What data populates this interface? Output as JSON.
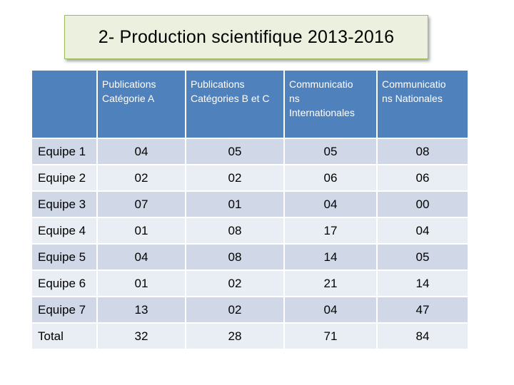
{
  "title": "2- Production scientifique 2013-2016",
  "table": {
    "headers": [
      "",
      "Publications\nCatégorie A",
      "Publications\nCatégories B et C",
      "Communicatio\nns\nInternationales",
      "Communicatio\nns Nationales"
    ],
    "rows": [
      [
        "Equipe 1",
        "04",
        "05",
        "05",
        "08"
      ],
      [
        "Equipe 2",
        "02",
        "02",
        "06",
        "06"
      ],
      [
        "Equipe 3",
        "07",
        "01",
        "04",
        "00"
      ],
      [
        "Equipe 4",
        "01",
        "08",
        "17",
        "04"
      ],
      [
        "Equipe 5",
        "04",
        "08",
        "14",
        "05"
      ],
      [
        "Equipe 6",
        "01",
        "02",
        "21",
        "14"
      ],
      [
        "Equipe 7",
        "13",
        "02",
        "04",
        "47"
      ],
      [
        "Total",
        "32",
        "28",
        "71",
        "84"
      ]
    ]
  },
  "colors": {
    "header_bg": "#4f81bd",
    "row_odd_bg": "#d0d8e8",
    "row_even_bg": "#e9edf4",
    "title_bg": "#ebf1de",
    "title_border": "#9bbb59"
  }
}
